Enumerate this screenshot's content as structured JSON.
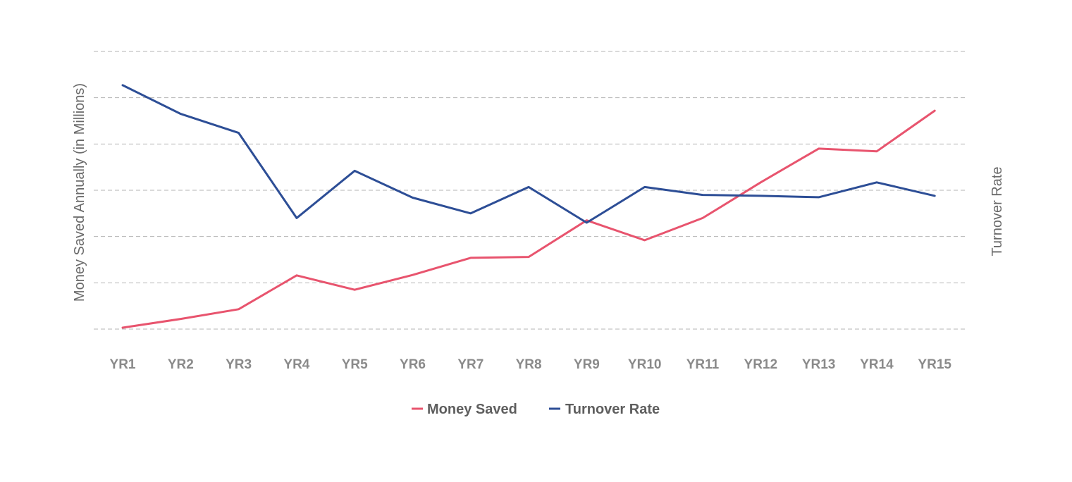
{
  "chart_data": {
    "type": "line",
    "ylabel": "Money Saved Annually (in Millions)",
    "y2label": "Turnover Rate",
    "categories": [
      "YR1",
      "YR2",
      "YR3",
      "YR4",
      "YR5",
      "YR6",
      "YR7",
      "YR8",
      "YR9",
      "YR10",
      "YR11",
      "YR12",
      "YR13",
      "YR14",
      "YR15"
    ],
    "ylim": [
      0,
      6
    ],
    "gridlines": 7,
    "grid": true,
    "legend_position": "bottom-center",
    "series": [
      {
        "name": "Money Saved",
        "color": "#e8546e",
        "values": [
          0.03,
          0.22,
          0.43,
          1.16,
          0.85,
          1.17,
          1.54,
          1.56,
          2.35,
          1.92,
          2.4,
          3.17,
          3.9,
          3.84,
          4.72
        ]
      },
      {
        "name": "Turnover Rate",
        "color": "#2d4e96",
        "values": [
          5.27,
          4.65,
          4.24,
          2.4,
          3.42,
          2.84,
          2.5,
          3.07,
          2.3,
          3.07,
          2.9,
          2.88,
          2.85,
          3.17,
          2.88
        ]
      }
    ]
  }
}
